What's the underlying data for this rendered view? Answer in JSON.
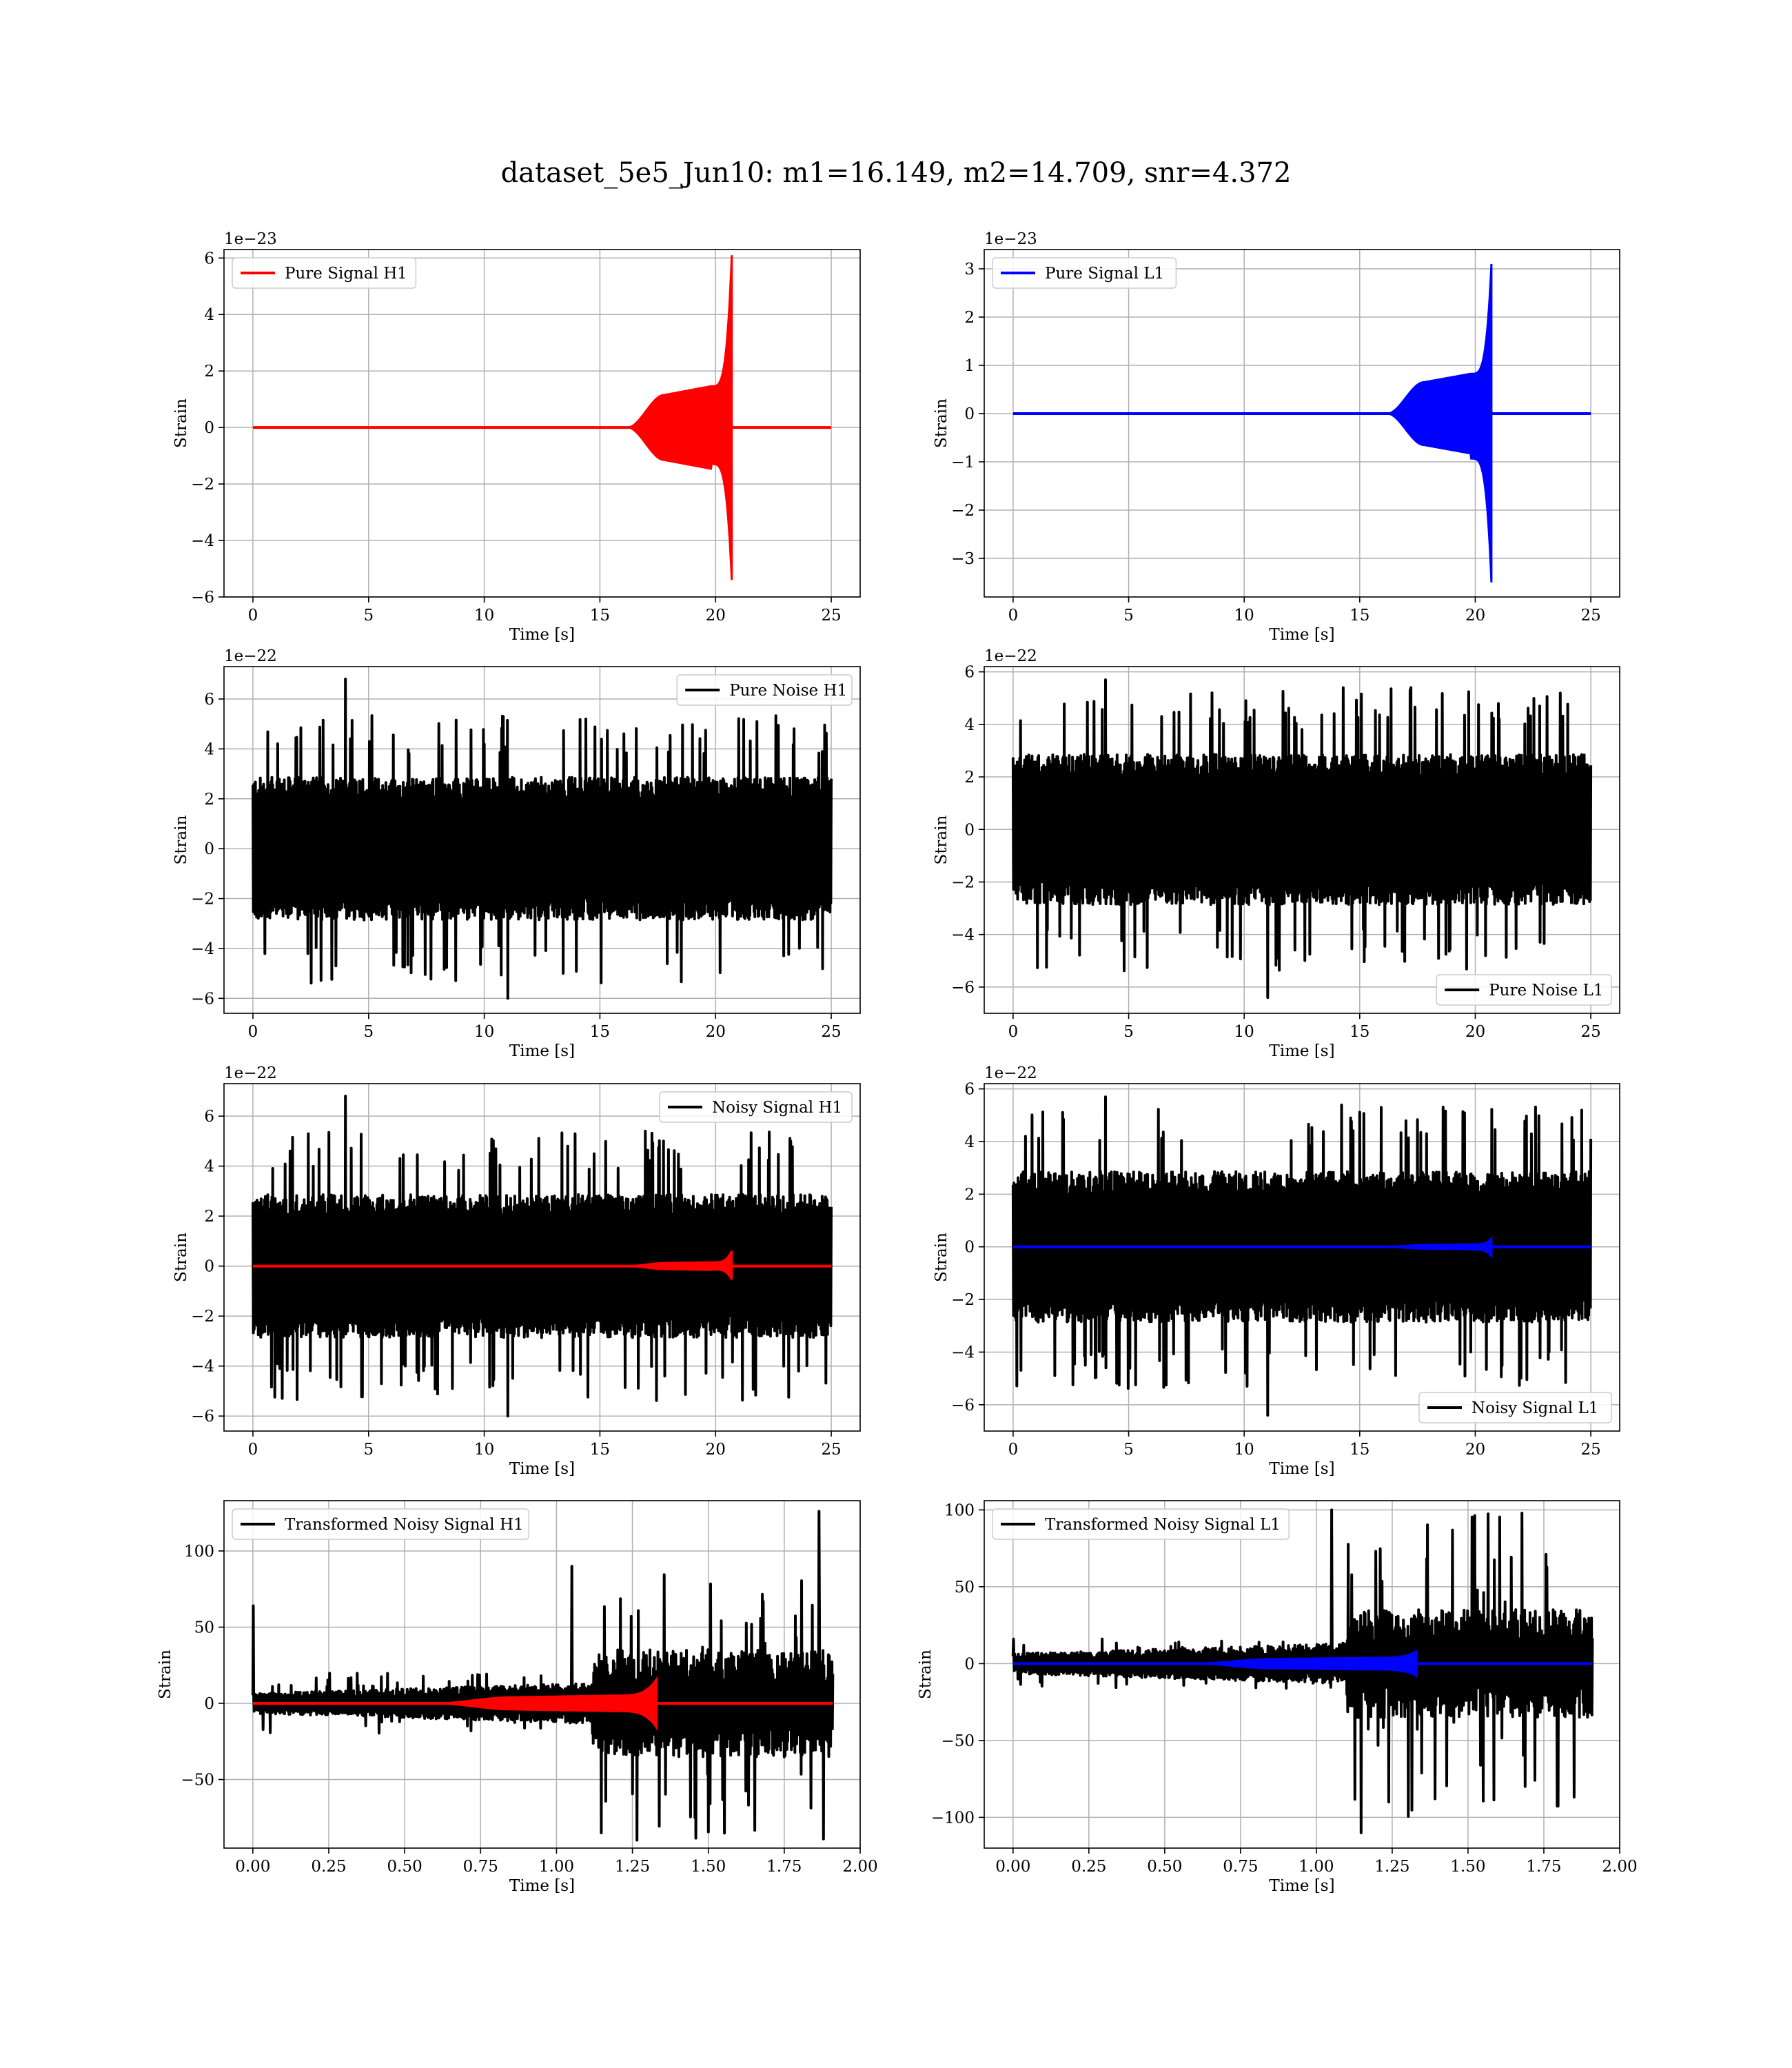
{
  "title": "dataset_5e5_Jun10: m1=16.149, m2=14.709, snr=4.372",
  "colors": {
    "h1_signal": "#ff0000",
    "l1_signal": "#0000ff",
    "noise": "#000000",
    "grid": "#b0b0b0"
  },
  "chart_data": [
    {
      "type": "line",
      "ylabel": "Strain",
      "xlabel": "Time [s]",
      "offset_label": "1e−23",
      "xlim": [
        -1.25,
        26.25
      ],
      "ylim": [
        -6.0,
        6.3
      ],
      "xticks": [
        0,
        5,
        10,
        15,
        20,
        25
      ],
      "xtick_labels": [
        "0",
        "5",
        "10",
        "15",
        "20",
        "25"
      ],
      "yticks": [
        -6,
        -4,
        -2,
        0,
        2,
        4,
        6
      ],
      "ytick_labels": [
        "−6",
        "−4",
        "−2",
        "0",
        "2",
        "4",
        "6"
      ],
      "legend_position": "upper-left",
      "series": [
        {
          "name": "Pure Signal H1",
          "color": "#ff0000",
          "kind": "chirp",
          "x_start": 0,
          "x_end": 25,
          "chirp_start": 16.2,
          "merger": 20.7,
          "plateau_amp": 1.15,
          "peak_pos": 6.1,
          "peak_neg": -5.4
        }
      ]
    },
    {
      "type": "line",
      "ylabel": "Strain",
      "xlabel": "Time [s]",
      "offset_label": "1e−23",
      "xlim": [
        -1.25,
        26.25
      ],
      "ylim": [
        -3.8,
        3.4
      ],
      "xticks": [
        0,
        5,
        10,
        15,
        20,
        25
      ],
      "xtick_labels": [
        "0",
        "5",
        "10",
        "15",
        "20",
        "25"
      ],
      "yticks": [
        -3,
        -2,
        -1,
        0,
        1,
        2,
        3
      ],
      "ytick_labels": [
        "−3",
        "−2",
        "−1",
        "0",
        "1",
        "2",
        "3"
      ],
      "legend_position": "upper-left",
      "series": [
        {
          "name": "Pure Signal L1",
          "color": "#0000ff",
          "kind": "chirp",
          "x_start": 0,
          "x_end": 25,
          "chirp_start": 16.2,
          "merger": 20.7,
          "plateau_amp": 0.65,
          "peak_pos": 3.1,
          "peak_neg": -3.5
        }
      ]
    },
    {
      "type": "line",
      "ylabel": "Strain",
      "xlabel": "Time [s]",
      "offset_label": "1e−22",
      "xlim": [
        -1.25,
        26.25
      ],
      "ylim": [
        -6.6,
        7.3
      ],
      "xticks": [
        0,
        5,
        10,
        15,
        20,
        25
      ],
      "xtick_labels": [
        "0",
        "5",
        "10",
        "15",
        "20",
        "25"
      ],
      "yticks": [
        -6,
        -4,
        -2,
        0,
        2,
        4,
        6
      ],
      "ytick_labels": [
        "−6",
        "−4",
        "−2",
        "0",
        "2",
        "4",
        "6"
      ],
      "legend_position": "upper-right",
      "series": [
        {
          "name": "Pure Noise H1",
          "color": "#000000",
          "kind": "noise",
          "x_start": 0,
          "x_end": 25,
          "band": 2.6,
          "spike_pos": 6.8,
          "spike_neg": -6.0
        }
      ]
    },
    {
      "type": "line",
      "ylabel": "Strain",
      "xlabel": "Time [s]",
      "offset_label": "1e−22",
      "xlim": [
        -1.25,
        26.25
      ],
      "ylim": [
        -7.0,
        6.2
      ],
      "xticks": [
        0,
        5,
        10,
        15,
        20,
        25
      ],
      "xtick_labels": [
        "0",
        "5",
        "10",
        "15",
        "20",
        "25"
      ],
      "yticks": [
        -6,
        -4,
        -2,
        0,
        2,
        4,
        6
      ],
      "ytick_labels": [
        "−6",
        "−4",
        "−2",
        "0",
        "2",
        "4",
        "6"
      ],
      "legend_position": "lower-right",
      "series": [
        {
          "name": "Pure Noise L1",
          "color": "#000000",
          "kind": "noise",
          "x_start": 0,
          "x_end": 25,
          "band": 2.6,
          "spike_pos": 5.7,
          "spike_neg": -6.4
        }
      ]
    },
    {
      "type": "line",
      "ylabel": "Strain",
      "xlabel": "Time [s]",
      "offset_label": "1e−22",
      "xlim": [
        -1.25,
        26.25
      ],
      "ylim": [
        -6.6,
        7.3
      ],
      "xticks": [
        0,
        5,
        10,
        15,
        20,
        25
      ],
      "xtick_labels": [
        "0",
        "5",
        "10",
        "15",
        "20",
        "25"
      ],
      "yticks": [
        -6,
        -4,
        -2,
        0,
        2,
        4,
        6
      ],
      "ytick_labels": [
        "−6",
        "−4",
        "−2",
        "0",
        "2",
        "4",
        "6"
      ],
      "legend_position": "upper-right",
      "series": [
        {
          "name": "Noisy Signal H1",
          "color": "#000000",
          "kind": "noise",
          "x_start": 0,
          "x_end": 25,
          "band": 2.6,
          "spike_pos": 6.8,
          "spike_neg": -6.0
        },
        {
          "color": "#ff0000",
          "kind": "chirp",
          "x_start": 0,
          "x_end": 25,
          "chirp_start": 16.2,
          "merger": 20.7,
          "plateau_amp": 0.12,
          "peak_pos": 0.61,
          "peak_neg": -0.54
        }
      ]
    },
    {
      "type": "line",
      "ylabel": "Strain",
      "xlabel": "Time [s]",
      "offset_label": "1e−22",
      "xlim": [
        -1.25,
        26.25
      ],
      "ylim": [
        -7.0,
        6.2
      ],
      "xticks": [
        0,
        5,
        10,
        15,
        20,
        25
      ],
      "xtick_labels": [
        "0",
        "5",
        "10",
        "15",
        "20",
        "25"
      ],
      "yticks": [
        -6,
        -4,
        -2,
        0,
        2,
        4,
        6
      ],
      "ytick_labels": [
        "−6",
        "−4",
        "−2",
        "0",
        "2",
        "4",
        "6"
      ],
      "legend_position": "lower-right",
      "series": [
        {
          "name": "Noisy Signal L1",
          "color": "#000000",
          "kind": "noise",
          "x_start": 0,
          "x_end": 25,
          "band": 2.6,
          "spike_pos": 5.7,
          "spike_neg": -6.4
        },
        {
          "color": "#0000ff",
          "kind": "chirp",
          "x_start": 0,
          "x_end": 25,
          "chirp_start": 16.2,
          "merger": 20.7,
          "plateau_amp": 0.07,
          "peak_pos": 0.31,
          "peak_neg": -0.35
        }
      ]
    },
    {
      "type": "line",
      "ylabel": "Strain",
      "xlabel": "Time [s]",
      "offset_label": "",
      "xlim": [
        -0.095,
        2.0
      ],
      "ylim": [
        -95,
        133
      ],
      "xticks": [
        0.0,
        0.25,
        0.5,
        0.75,
        1.0,
        1.25,
        1.5,
        1.75,
        2.0
      ],
      "xtick_labels": [
        "0.00",
        "0.25",
        "0.50",
        "0.75",
        "1.00",
        "1.25",
        "1.50",
        "1.75",
        "2.00"
      ],
      "yticks": [
        -50,
        0,
        50,
        100
      ],
      "ytick_labels": [
        "−50",
        "0",
        "50",
        "100"
      ],
      "legend_position": "upper-left",
      "series": [
        {
          "name": "Transformed Noisy Signal H1",
          "color": "#000000",
          "kind": "transformed",
          "x_start": 0,
          "x_end": 1.91,
          "break": 1.12,
          "low_band": 6,
          "low_spike": 18,
          "high_band": 32,
          "high_spike_pos": 90,
          "high_spike_neg": -85,
          "start_spike": 64,
          "end_spike": 126,
          "end_spike_x": 1.865
        },
        {
          "color": "#ff0000",
          "kind": "chirp",
          "x_start": 0,
          "x_end": 1.91,
          "chirp_start": 0.6,
          "merger": 1.33,
          "plateau_amp": 4,
          "peak_pos": 16,
          "peak_neg": -16
        }
      ]
    },
    {
      "type": "line",
      "ylabel": "Strain",
      "xlabel": "Time [s]",
      "offset_label": "",
      "xlim": [
        -0.095,
        2.0
      ],
      "ylim": [
        -120,
        106
      ],
      "xticks": [
        0.0,
        0.25,
        0.5,
        0.75,
        1.0,
        1.25,
        1.5,
        1.75,
        2.0
      ],
      "xtick_labels": [
        "0.00",
        "0.25",
        "0.50",
        "0.75",
        "1.00",
        "1.25",
        "1.50",
        "1.75",
        "2.00"
      ],
      "yticks": [
        -100,
        -50,
        0,
        50,
        100
      ],
      "ytick_labels": [
        "−100",
        "−50",
        "0",
        "50",
        "100"
      ],
      "legend_position": "upper-left",
      "series": [
        {
          "name": "Transformed Noisy Signal L1",
          "color": "#000000",
          "kind": "transformed",
          "x_start": 0,
          "x_end": 1.91,
          "break": 1.1,
          "low_band": 6,
          "low_spike": 15,
          "high_band": 32,
          "high_spike_pos": 100,
          "high_spike_neg": -110,
          "start_spike": 16,
          "end_spike": 8,
          "end_spike_x": 1.87
        },
        {
          "color": "#0000ff",
          "kind": "chirp",
          "x_start": 0,
          "x_end": 1.91,
          "chirp_start": 0.6,
          "merger": 1.33,
          "plateau_amp": 3,
          "peak_pos": 8,
          "peak_neg": -8
        }
      ]
    }
  ]
}
